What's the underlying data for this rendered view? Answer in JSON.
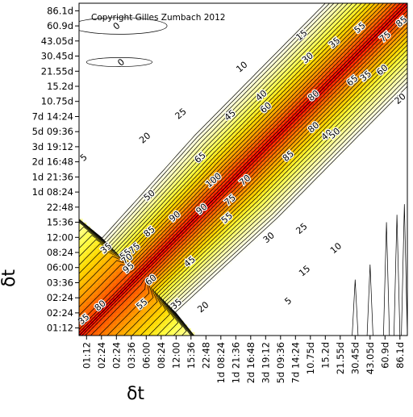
{
  "chart_data": {
    "type": "heatmap",
    "title": "",
    "copyright": "Copyright Gilles Zumbach 2012",
    "xlabel": "δt",
    "ylabel": "δt",
    "grid": false,
    "x_tick_labels": [
      "01:12",
      "02:24",
      "02:24",
      "03:36",
      "06:00",
      "08:24",
      "12:00",
      "15:36",
      "22:48",
      "1d 08:24",
      "1d 21:36",
      "2d 16:48",
      "3d 19:12",
      "5d 09:36",
      "7d 14:24",
      "10.75d",
      "15.2d",
      "21.55d",
      "30.45d",
      "43.05d",
      "60.9d",
      "86.1d"
    ],
    "y_tick_labels": [
      "01:12",
      "02:24",
      "02:24",
      "03:36",
      "06:00",
      "08:24",
      "12:00",
      "15:36",
      "22:48",
      "1d 08:24",
      "1d 21:36",
      "2d 16:48",
      "3d 19:12",
      "5d 09:36",
      "7d 14:24",
      "10.75d",
      "15.2d",
      "21.55d",
      "30.45d",
      "43.05d",
      "60.9d",
      "86.1d"
    ],
    "color_scale": {
      "stops": [
        {
          "value": 0,
          "color": "#ffffff"
        },
        {
          "value": 10,
          "color": "#ffffe6"
        },
        {
          "value": 25,
          "color": "#ffffa0"
        },
        {
          "value": 40,
          "color": "#ffff4a"
        },
        {
          "value": 55,
          "color": "#ffd800"
        },
        {
          "value": 70,
          "color": "#ffa000"
        },
        {
          "value": 85,
          "color": "#ff5a00"
        },
        {
          "value": 100,
          "color": "#ff0000"
        }
      ]
    },
    "contour_labels": [
      {
        "text": "0",
        "i": 2.0,
        "j": 20.0
      },
      {
        "text": "0",
        "i": 2.3,
        "j": 17.6
      },
      {
        "text": "5",
        "i": -0.2,
        "j": 11.3
      },
      {
        "text": "5",
        "i": 13.5,
        "j": 1.8
      },
      {
        "text": "10",
        "i": 10.4,
        "j": 17.3
      },
      {
        "text": "10",
        "i": 16.7,
        "j": 5.3
      },
      {
        "text": "15",
        "i": 14.4,
        "j": 19.4
      },
      {
        "text": "15",
        "i": 14.6,
        "j": 3.8
      },
      {
        "text": "20",
        "i": 3.9,
        "j": 12.6
      },
      {
        "text": "20",
        "i": 21.0,
        "j": 15.2
      },
      {
        "text": "20",
        "i": 7.8,
        "j": 1.4
      },
      {
        "text": "25",
        "i": 6.3,
        "j": 14.2
      },
      {
        "text": "25",
        "i": 14.4,
        "j": 6.6
      },
      {
        "text": "30",
        "i": 14.8,
        "j": 17.9
      },
      {
        "text": "30",
        "i": 12.2,
        "j": 6.0
      },
      {
        "text": "35",
        "i": 16.6,
        "j": 18.9
      },
      {
        "text": "35",
        "i": 18.7,
        "j": 16.7
      },
      {
        "text": "35",
        "i": 1.3,
        "j": 5.3
      },
      {
        "text": "35",
        "i": 6.0,
        "j": 1.6
      },
      {
        "text": "35",
        "i": -0.2,
        "j": 0.6
      },
      {
        "text": "40",
        "i": 11.7,
        "j": 15.4
      },
      {
        "text": "40",
        "i": 16.1,
        "j": 12.8
      },
      {
        "text": "45",
        "i": 9.6,
        "j": 14.1
      },
      {
        "text": "45",
        "i": 6.9,
        "j": 4.4
      },
      {
        "text": "50",
        "i": 4.2,
        "j": 8.8
      },
      {
        "text": "50",
        "i": 16.6,
        "j": 12.9
      },
      {
        "text": "55",
        "i": 18.3,
        "j": 19.9
      },
      {
        "text": "55",
        "i": 9.4,
        "j": 7.3
      },
      {
        "text": "55",
        "i": 2.6,
        "j": 4.9
      },
      {
        "text": "55",
        "i": 3.7,
        "j": 1.6
      },
      {
        "text": "60",
        "i": 12.0,
        "j": 14.6
      },
      {
        "text": "60",
        "i": 19.8,
        "j": 17.1
      },
      {
        "text": "60",
        "i": 4.3,
        "j": 3.2
      },
      {
        "text": "65",
        "i": 7.6,
        "j": 11.3
      },
      {
        "text": "65",
        "i": 17.8,
        "j": 16.4
      },
      {
        "text": "70",
        "i": 10.6,
        "j": 9.8
      },
      {
        "text": "70",
        "i": 2.7,
        "j": 4.6
      },
      {
        "text": "75",
        "i": 20.0,
        "j": 19.3
      },
      {
        "text": "75",
        "i": 9.6,
        "j": 8.5
      },
      {
        "text": "75",
        "i": 3.2,
        "j": 5.3
      },
      {
        "text": "80",
        "i": 15.2,
        "j": 15.4
      },
      {
        "text": "80",
        "i": 15.2,
        "j": 13.3
      },
      {
        "text": "80",
        "i": 0.9,
        "j": 1.5
      },
      {
        "text": "85",
        "i": 21.1,
        "j": 20.3
      },
      {
        "text": "85",
        "i": 13.5,
        "j": 11.4
      },
      {
        "text": "85",
        "i": 4.2,
        "j": 6.4
      },
      {
        "text": "90",
        "i": 5.9,
        "j": 7.4
      },
      {
        "text": "90",
        "i": 7.7,
        "j": 7.9
      },
      {
        "text": "95",
        "i": 2.8,
        "j": 4.0
      },
      {
        "text": "100",
        "i": 8.5,
        "j": 9.8
      }
    ]
  }
}
